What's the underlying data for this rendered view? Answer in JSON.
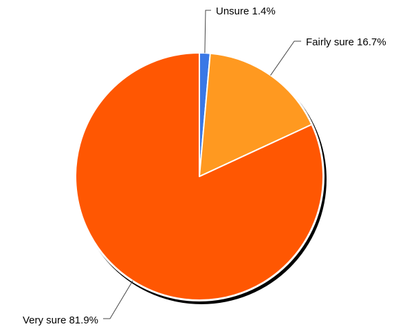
{
  "chart_data": {
    "type": "pie",
    "title": "",
    "slices": [
      {
        "label": "Unsure",
        "value": 1.4,
        "display": "Unsure 1.4%",
        "color": "#3a78e6"
      },
      {
        "label": "Fairly sure",
        "value": 16.7,
        "display": "Fairly sure 16.7%",
        "color": "#ff9920"
      },
      {
        "label": "Very sure",
        "value": 81.9,
        "display": "Very sure 81.9%",
        "color": "#ff5702"
      }
    ],
    "start_angle": "12 o'clock",
    "direction": "clockwise",
    "legend": "none",
    "shadow": true
  }
}
